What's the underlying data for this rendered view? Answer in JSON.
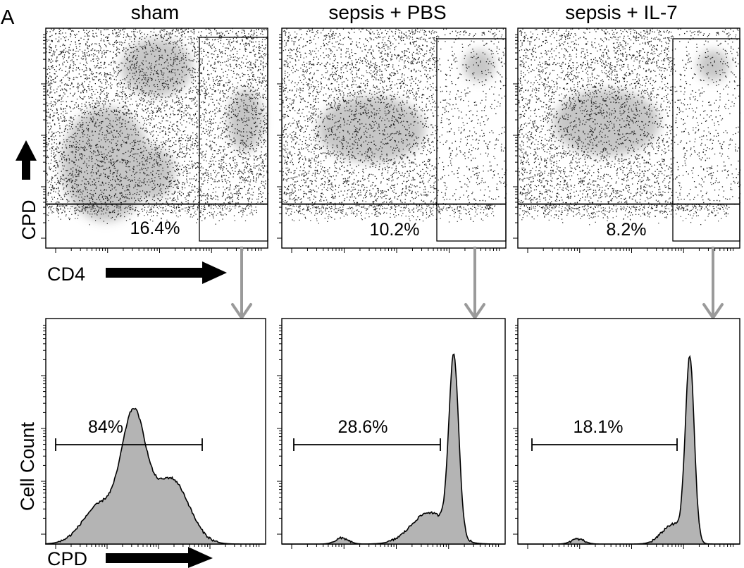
{
  "panel_letter": "A",
  "axis_labels": {
    "scatter_y": "CPD",
    "scatter_x": "CD4",
    "hist_y": "Cell Count",
    "hist_x": "CPD"
  },
  "colors": {
    "fill": "#b4b4b4",
    "ink": "#000000",
    "dots": "#1a1a1a",
    "pop": "#c4c4c4",
    "arrow": "#9a9a9a"
  },
  "chart_data": [
    {
      "type": "scatter",
      "title": "sham",
      "xlabel": "CD4",
      "ylabel": "CPD",
      "gate_label": "16.4%",
      "gate_percent": 16.4,
      "populations": [
        {
          "cx": 0.27,
          "cy": 0.62,
          "sx": 0.2,
          "sy": 0.26
        },
        {
          "cx": 0.5,
          "cy": 0.18,
          "sx": 0.16,
          "sy": 0.13
        },
        {
          "cx": 0.9,
          "cy": 0.42,
          "sx": 0.08,
          "sy": 0.14
        },
        {
          "cx": 0.48,
          "cy": 0.66,
          "sx": 0.1,
          "sy": 0.12
        }
      ]
    },
    {
      "type": "scatter",
      "title": "sepsis + PBS",
      "xlabel": "CD4",
      "ylabel": "CPD",
      "gate_label": "10.2%",
      "gate_percent": 10.2,
      "populations": [
        {
          "cx": 0.4,
          "cy": 0.46,
          "sx": 0.24,
          "sy": 0.15
        },
        {
          "cx": 0.88,
          "cy": 0.17,
          "sx": 0.07,
          "sy": 0.07
        }
      ]
    },
    {
      "type": "scatter",
      "title": "sepsis + IL-7",
      "xlabel": "CD4",
      "ylabel": "CPD",
      "gate_label": "8.2%",
      "gate_percent": 8.2,
      "populations": [
        {
          "cx": 0.4,
          "cy": 0.43,
          "sx": 0.24,
          "sy": 0.15
        },
        {
          "cx": 0.88,
          "cy": 0.17,
          "sx": 0.07,
          "sy": 0.07
        }
      ]
    },
    {
      "type": "area",
      "title": "sham",
      "xlabel": "CPD",
      "ylabel": "Cell Count",
      "gate_label": "84%",
      "gate_percent": 84,
      "peaks": [
        {
          "mu": 0.4,
          "sd": 0.055,
          "amp": 0.62
        },
        {
          "mu": 0.57,
          "sd": 0.08,
          "amp": 0.33
        },
        {
          "mu": 0.25,
          "sd": 0.08,
          "amp": 0.2
        }
      ]
    },
    {
      "type": "area",
      "title": "sepsis + PBS",
      "xlabel": "CPD",
      "ylabel": "Cell Count",
      "gate_label": "28.6%",
      "gate_percent": 28.6,
      "peaks": [
        {
          "mu": 0.77,
          "sd": 0.022,
          "amp": 0.9
        },
        {
          "mu": 0.66,
          "sd": 0.08,
          "amp": 0.16
        },
        {
          "mu": 0.27,
          "sd": 0.03,
          "amp": 0.03
        }
      ]
    },
    {
      "type": "area",
      "title": "sepsis + IL-7",
      "xlabel": "CPD",
      "ylabel": "Cell Count",
      "gate_label": "18.1%",
      "gate_percent": 18.1,
      "peaks": [
        {
          "mu": 0.775,
          "sd": 0.02,
          "amp": 0.92
        },
        {
          "mu": 0.7,
          "sd": 0.05,
          "amp": 0.1
        },
        {
          "mu": 0.27,
          "sd": 0.03,
          "amp": 0.025
        }
      ]
    }
  ]
}
